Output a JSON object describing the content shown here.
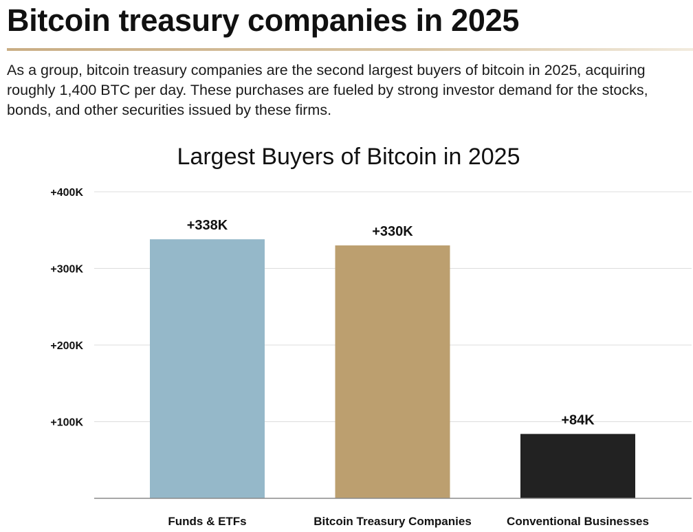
{
  "page": {
    "title": "Bitcoin treasury companies in 2025",
    "intro": "As a group, bitcoin treasury companies are the second largest buyers of bitcoin in 2025, acquiring roughly 1,400 BTC per day. These purchases are fueled by strong investor demand for the stocks, bonds, and other securities issued by these firms."
  },
  "chart_data": {
    "type": "bar",
    "title": "Largest Buyers of Bitcoin in 2025",
    "xlabel": "",
    "ylabel": "",
    "categories": [
      "Funds & ETFs",
      "Bitcoin Treasury Companies",
      "Conventional Businesses"
    ],
    "values": [
      338000,
      330000,
      84000
    ],
    "value_labels": [
      "+338K",
      "+330K",
      "+84K"
    ],
    "bar_colors": [
      "#95b8c9",
      "#bc9f6f",
      "#222222"
    ],
    "ylim": [
      0,
      400000
    ],
    "yticks": [
      100000,
      200000,
      300000,
      400000
    ],
    "ytick_labels": [
      "+100K",
      "+200K",
      "+300K",
      "+400K"
    ],
    "grid": true,
    "legend": "none"
  }
}
